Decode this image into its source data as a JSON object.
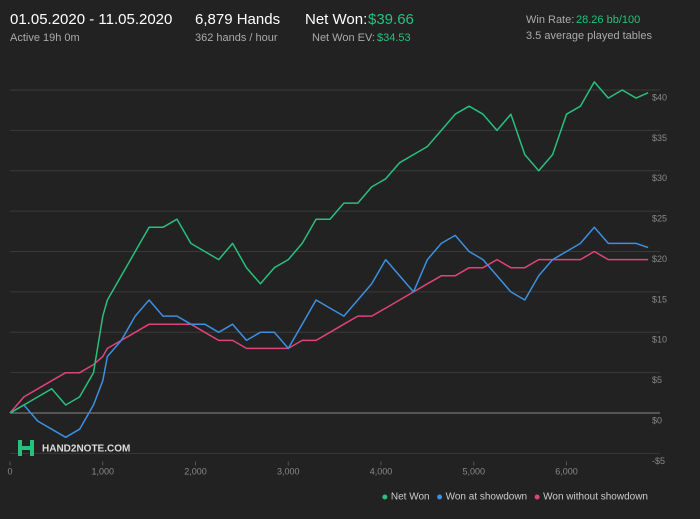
{
  "header": {
    "date_range": "01.05.2020 - 11.05.2020",
    "active": "Active 19h 0m",
    "hands": "6,879 Hands",
    "hands_per_hour": "362 hands / hour",
    "net_won_label": "Net Won:",
    "net_won_value": "$39.66",
    "net_won_ev_label": "Net Won  EV:",
    "net_won_ev_value": "$34.53",
    "win_rate_label": "Win Rate:",
    "win_rate_value": "28.26 bb/100",
    "tables": "3.5 average played tables",
    "logo": "HAND2NOTE.COM"
  },
  "chart_data": {
    "type": "line",
    "x": [
      0,
      150,
      300,
      450,
      600,
      750,
      900,
      1000,
      1050,
      1200,
      1350,
      1500,
      1650,
      1800,
      1950,
      2100,
      2250,
      2400,
      2550,
      2700,
      2850,
      3000,
      3150,
      3300,
      3450,
      3600,
      3750,
      3900,
      4050,
      4200,
      4350,
      4500,
      4650,
      4800,
      4950,
      5100,
      5250,
      5400,
      5550,
      5700,
      5850,
      6000,
      6150,
      6300,
      6450,
      6600,
      6750,
      6879
    ],
    "series": [
      {
        "name": "Net Won",
        "color": "#27c07d",
        "values": [
          0,
          1,
          2,
          3,
          1,
          2,
          5,
          12,
          14,
          17,
          20,
          23,
          23,
          24,
          21,
          20,
          19,
          21,
          18,
          16,
          18,
          19,
          21,
          24,
          24,
          26,
          26,
          28,
          29,
          31,
          32,
          33,
          35,
          37,
          38,
          37,
          35,
          37,
          32,
          30,
          32,
          37,
          38,
          41,
          39,
          40,
          39,
          39.66
        ]
      },
      {
        "name": "Won at showdown",
        "color": "#3d8fe0",
        "values": [
          0,
          1,
          -1,
          -2,
          -3,
          -2,
          1,
          4,
          7,
          9,
          12,
          14,
          12,
          12,
          11,
          11,
          10,
          11,
          9,
          10,
          10,
          8,
          11,
          14,
          13,
          12,
          14,
          16,
          19,
          17,
          15,
          19,
          21,
          22,
          20,
          19,
          17,
          15,
          14,
          17,
          19,
          20,
          21,
          23,
          21,
          21,
          21,
          20.5
        ]
      },
      {
        "name": "Won without showdown",
        "color": "#e0437a",
        "values": [
          0,
          2,
          3,
          4,
          5,
          5,
          6,
          7,
          8,
          9,
          10,
          11,
          11,
          11,
          11,
          10,
          9,
          9,
          8,
          8,
          8,
          8,
          9,
          9,
          10,
          11,
          12,
          12,
          13,
          14,
          15,
          16,
          17,
          17,
          18,
          18,
          19,
          18,
          18,
          19,
          19,
          19,
          19,
          20,
          19,
          19,
          19,
          19
        ]
      }
    ],
    "xlim": [
      0,
      6900
    ],
    "ylim": [
      -6,
      44
    ],
    "xticks": [
      0,
      {
        "value": 1000,
        "label": "1,000"
      },
      {
        "value": 2000,
        "label": "2,000"
      },
      {
        "value": 3000,
        "label": "3,000"
      },
      {
        "value": 4000,
        "label": "4,000"
      },
      {
        "value": 5000,
        "label": "5,000"
      },
      {
        "value": 6000,
        "label": "6,000"
      }
    ],
    "yticks": [
      {
        "value": -5,
        "label": "-$5"
      },
      {
        "value": 0,
        "label": "$0"
      },
      {
        "value": 5,
        "label": "$5"
      },
      {
        "value": 10,
        "label": "$10"
      },
      {
        "value": 15,
        "label": "$15"
      },
      {
        "value": 20,
        "label": "$20"
      },
      {
        "value": 25,
        "label": "$25"
      },
      {
        "value": 30,
        "label": "$30"
      },
      {
        "value": 35,
        "label": "$35"
      },
      {
        "value": 40,
        "label": "$40"
      }
    ],
    "grid": true
  }
}
